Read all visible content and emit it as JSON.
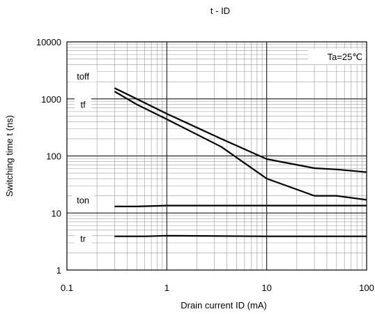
{
  "chart_data": {
    "type": "line",
    "title": "t - ID",
    "xlabel": "Drain current  ID (mA)",
    "ylabel": "Switching time t (ns)",
    "x_scale": "log",
    "y_scale": "log",
    "xlim": [
      0.1,
      100
    ],
    "ylim": [
      1,
      10000
    ],
    "x_ticks": [
      0.1,
      1,
      10,
      100
    ],
    "x_tick_labels": [
      "0.1",
      "1",
      "10",
      "100"
    ],
    "y_ticks": [
      1,
      10,
      100,
      1000,
      10000
    ],
    "y_tick_labels": [
      "1",
      "10",
      "100",
      "1000",
      "10000"
    ],
    "grid": true,
    "annotation": "Ta=25℃",
    "series": [
      {
        "name": "toff",
        "x": [
          0.3,
          0.5,
          1,
          3.5,
          10,
          30,
          50,
          100
        ],
        "y": [
          1550,
          1000,
          550,
          200,
          88,
          61,
          58,
          52
        ]
      },
      {
        "name": "tf",
        "x": [
          0.3,
          0.5,
          1,
          3.5,
          10,
          30,
          50,
          100
        ],
        "y": [
          1350,
          800,
          440,
          145,
          40,
          20,
          20,
          17
        ]
      },
      {
        "name": "ton",
        "x": [
          0.3,
          0.5,
          1,
          10,
          100
        ],
        "y": [
          13,
          13,
          13.5,
          13.5,
          13.5
        ]
      },
      {
        "name": "tr",
        "x": [
          0.3,
          0.6,
          1,
          10,
          100
        ],
        "y": [
          3.9,
          3.9,
          4.0,
          3.9,
          3.9
        ]
      }
    ],
    "series_label_anchor": [
      {
        "name": "toff",
        "x": 0.145,
        "y": 2500
      },
      {
        "name": "tf",
        "x": 0.145,
        "y": 800
      },
      {
        "name": "ton",
        "x": 0.145,
        "y": 17
      },
      {
        "name": "tr",
        "x": 0.145,
        "y": 3.6
      }
    ]
  }
}
